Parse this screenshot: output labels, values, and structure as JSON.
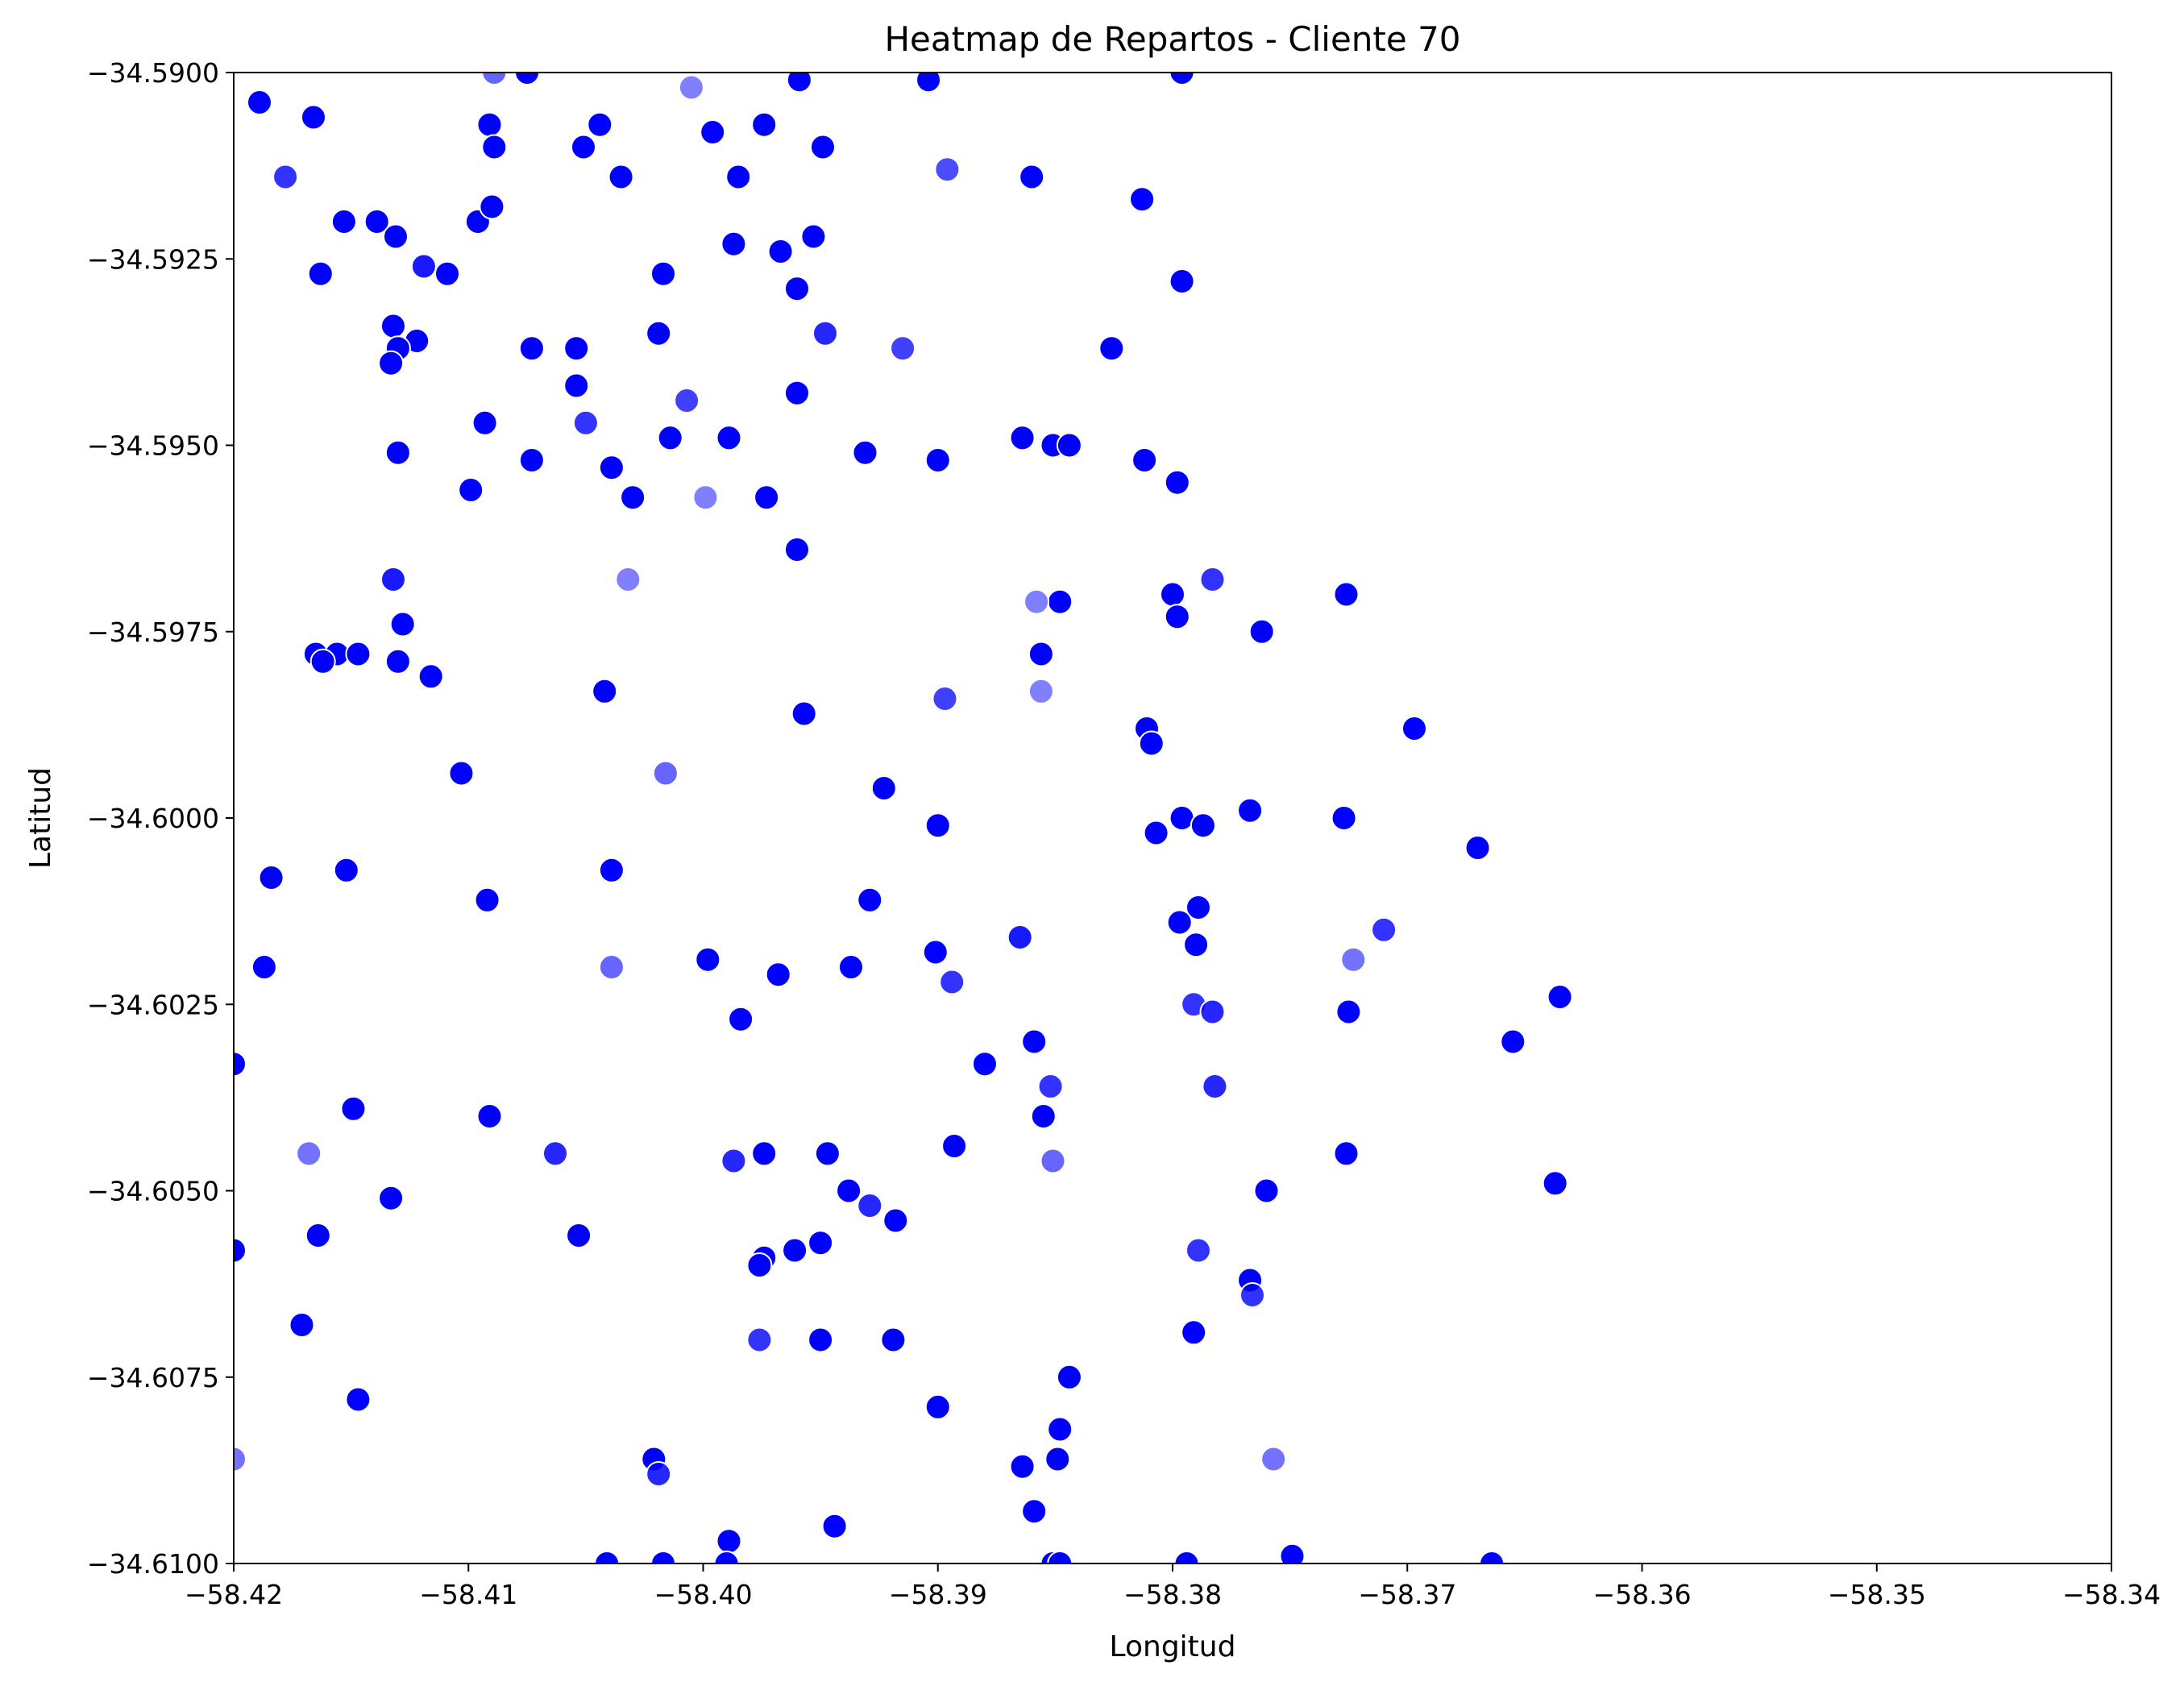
{
  "chart_data": {
    "type": "scatter",
    "title": "Heatmap de Repartos - Cliente 70",
    "xlabel": "Longitud",
    "ylabel": "Latitud",
    "xlim": [
      -58.42,
      -58.34
    ],
    "ylim": [
      -34.61,
      -34.59
    ],
    "x_ticks": [
      "−58.42",
      "−58.41",
      "−58.40",
      "−58.39",
      "−58.38",
      "−58.37",
      "−58.36",
      "−58.35",
      "−58.34"
    ],
    "x_tick_values": [
      -58.42,
      -58.41,
      -58.4,
      -58.39,
      -58.38,
      -58.37,
      -58.36,
      -58.35,
      -58.34
    ],
    "y_ticks": [
      "−34.5900",
      "−34.5925",
      "−34.5950",
      "−34.5975",
      "−34.6000",
      "−34.6025",
      "−34.6050",
      "−34.6075",
      "−34.6100"
    ],
    "y_tick_values": [
      -34.59,
      -34.5925,
      -34.595,
      -34.5975,
      -34.6,
      -34.6025,
      -34.605,
      -34.6075,
      -34.61
    ],
    "grid": false,
    "marker_color": "#0000ff",
    "marker_edge_color": "#ffffff",
    "points": [
      {
        "x": -58.4089,
        "y": -34.59,
        "a": 0.6
      },
      {
        "x": -58.4075,
        "y": -34.59,
        "a": 1
      },
      {
        "x": -58.4005,
        "y": -34.5902,
        "a": 0.5
      },
      {
        "x": -58.3959,
        "y": -34.5901,
        "a": 1
      },
      {
        "x": -58.3904,
        "y": -34.5901,
        "a": 1
      },
      {
        "x": -58.3796,
        "y": -34.59,
        "a": 1
      },
      {
        "x": -58.4189,
        "y": -34.5904,
        "a": 1
      },
      {
        "x": -58.4166,
        "y": -34.5906,
        "a": 1
      },
      {
        "x": -58.4091,
        "y": -34.5907,
        "a": 1
      },
      {
        "x": -58.4044,
        "y": -34.5907,
        "a": 1
      },
      {
        "x": -58.3996,
        "y": -34.5908,
        "a": 1
      },
      {
        "x": -58.3974,
        "y": -34.5907,
        "a": 1
      },
      {
        "x": -58.4089,
        "y": -34.591,
        "a": 1
      },
      {
        "x": -58.4051,
        "y": -34.591,
        "a": 1
      },
      {
        "x": -58.3949,
        "y": -34.591,
        "a": 1
      },
      {
        "x": -58.4178,
        "y": -34.5914,
        "a": 0.8
      },
      {
        "x": -58.4035,
        "y": -34.5914,
        "a": 1
      },
      {
        "x": -58.3985,
        "y": -34.5914,
        "a": 1
      },
      {
        "x": -58.3896,
        "y": -34.5913,
        "a": 0.7
      },
      {
        "x": -58.386,
        "y": -34.5914,
        "a": 1
      },
      {
        "x": -58.3813,
        "y": -34.5917,
        "a": 1
      },
      {
        "x": -58.4153,
        "y": -34.592,
        "a": 1
      },
      {
        "x": -58.4139,
        "y": -34.592,
        "a": 1
      },
      {
        "x": -58.4131,
        "y": -34.5922,
        "a": 1
      },
      {
        "x": -58.4096,
        "y": -34.592,
        "a": 1
      },
      {
        "x": -58.409,
        "y": -34.5918,
        "a": 1
      },
      {
        "x": -58.3987,
        "y": -34.5923,
        "a": 1
      },
      {
        "x": -58.3967,
        "y": -34.5924,
        "a": 1
      },
      {
        "x": -58.3953,
        "y": -34.5922,
        "a": 1
      },
      {
        "x": -58.4119,
        "y": -34.5926,
        "a": 0.9
      },
      {
        "x": -58.4163,
        "y": -34.5927,
        "a": 1
      },
      {
        "x": -58.4109,
        "y": -34.5927,
        "a": 1
      },
      {
        "x": -58.4017,
        "y": -34.5927,
        "a": 1
      },
      {
        "x": -58.396,
        "y": -34.5929,
        "a": 1
      },
      {
        "x": -58.3796,
        "y": -34.5928,
        "a": 1
      },
      {
        "x": -58.4132,
        "y": -34.5934,
        "a": 1
      },
      {
        "x": -58.4019,
        "y": -34.5935,
        "a": 1
      },
      {
        "x": -58.3948,
        "y": -34.5935,
        "a": 0.85
      },
      {
        "x": -58.4122,
        "y": -34.5936,
        "a": 1
      },
      {
        "x": -58.413,
        "y": -34.5937,
        "a": 1
      },
      {
        "x": -58.4073,
        "y": -34.5937,
        "a": 1
      },
      {
        "x": -58.4054,
        "y": -34.5937,
        "a": 1
      },
      {
        "x": -58.3915,
        "y": -34.5937,
        "a": 0.75
      },
      {
        "x": -58.3826,
        "y": -34.5937,
        "a": 1
      },
      {
        "x": -58.4133,
        "y": -34.5939,
        "a": 1
      },
      {
        "x": -58.4054,
        "y": -34.5942,
        "a": 1
      },
      {
        "x": -58.396,
        "y": -34.5943,
        "a": 1
      },
      {
        "x": -58.4007,
        "y": -34.5944,
        "a": 0.75
      },
      {
        "x": -58.4093,
        "y": -34.5947,
        "a": 1
      },
      {
        "x": -58.405,
        "y": -34.5947,
        "a": 0.8
      },
      {
        "x": -58.3989,
        "y": -34.5949,
        "a": 1
      },
      {
        "x": -58.4014,
        "y": -34.5949,
        "a": 1
      },
      {
        "x": -58.3931,
        "y": -34.5951,
        "a": 1
      },
      {
        "x": -58.3864,
        "y": -34.5949,
        "a": 1
      },
      {
        "x": -58.3851,
        "y": -34.595,
        "a": 1
      },
      {
        "x": -58.3844,
        "y": -34.595,
        "a": 1
      },
      {
        "x": -58.413,
        "y": -34.5951,
        "a": 1
      },
      {
        "x": -58.4073,
        "y": -34.5952,
        "a": 1
      },
      {
        "x": -58.4039,
        "y": -34.5953,
        "a": 1
      },
      {
        "x": -58.39,
        "y": -34.5952,
        "a": 1
      },
      {
        "x": -58.3812,
        "y": -34.5952,
        "a": 1
      },
      {
        "x": -58.3798,
        "y": -34.5955,
        "a": 1
      },
      {
        "x": -58.4099,
        "y": -34.5956,
        "a": 1
      },
      {
        "x": -58.403,
        "y": -34.5957,
        "a": 1
      },
      {
        "x": -58.3999,
        "y": -34.5957,
        "a": 0.5
      },
      {
        "x": -58.3973,
        "y": -34.5957,
        "a": 1
      },
      {
        "x": -58.396,
        "y": -34.5964,
        "a": 1
      },
      {
        "x": -58.4132,
        "y": -34.5968,
        "a": 0.9
      },
      {
        "x": -58.4032,
        "y": -34.5968,
        "a": 0.5
      },
      {
        "x": -58.3783,
        "y": -34.5968,
        "a": 0.8
      },
      {
        "x": -58.38,
        "y": -34.597,
        "a": 1
      },
      {
        "x": -58.3848,
        "y": -34.5971,
        "a": 1
      },
      {
        "x": -58.3858,
        "y": -34.5971,
        "a": 0.5
      },
      {
        "x": -58.3726,
        "y": -34.597,
        "a": 1
      },
      {
        "x": -58.3798,
        "y": -34.5973,
        "a": 1
      },
      {
        "x": -58.4128,
        "y": -34.5974,
        "a": 1
      },
      {
        "x": -58.3762,
        "y": -34.5975,
        "a": 1
      },
      {
        "x": -58.4165,
        "y": -34.5978,
        "a": 1
      },
      {
        "x": -58.4156,
        "y": -34.5978,
        "a": 1
      },
      {
        "x": -58.4147,
        "y": -34.5978,
        "a": 1
      },
      {
        "x": -58.4162,
        "y": -34.5979,
        "a": 1
      },
      {
        "x": -58.413,
        "y": -34.5979,
        "a": 1
      },
      {
        "x": -58.3856,
        "y": -34.5978,
        "a": 1
      },
      {
        "x": -58.4116,
        "y": -34.5981,
        "a": 1
      },
      {
        "x": -58.4042,
        "y": -34.5983,
        "a": 1
      },
      {
        "x": -58.3856,
        "y": -34.5983,
        "a": 0.5
      },
      {
        "x": -58.3897,
        "y": -34.5984,
        "a": 0.75
      },
      {
        "x": -58.3957,
        "y": -34.5986,
        "a": 1
      },
      {
        "x": -58.3697,
        "y": -34.5988,
        "a": 1
      },
      {
        "x": -58.3811,
        "y": -34.5988,
        "a": 1
      },
      {
        "x": -58.3809,
        "y": -34.599,
        "a": 1
      },
      {
        "x": -58.4103,
        "y": -34.5994,
        "a": 1
      },
      {
        "x": -58.4016,
        "y": -34.5994,
        "a": 0.6
      },
      {
        "x": -58.3923,
        "y": -34.5996,
        "a": 1
      },
      {
        "x": -58.3767,
        "y": -34.5999,
        "a": 1
      },
      {
        "x": -58.3796,
        "y": -34.6,
        "a": 1
      },
      {
        "x": -58.3787,
        "y": -34.6001,
        "a": 1
      },
      {
        "x": -58.39,
        "y": -34.6001,
        "a": 1
      },
      {
        "x": -58.3727,
        "y": -34.6,
        "a": 1
      },
      {
        "x": -58.3807,
        "y": -34.6002,
        "a": 1
      },
      {
        "x": -58.367,
        "y": -34.6004,
        "a": 1
      },
      {
        "x": -58.4184,
        "y": -34.6008,
        "a": 1
      },
      {
        "x": -58.4152,
        "y": -34.6007,
        "a": 1
      },
      {
        "x": -58.4039,
        "y": -34.6007,
        "a": 1
      },
      {
        "x": -58.4092,
        "y": -34.6011,
        "a": 1
      },
      {
        "x": -58.3929,
        "y": -34.6011,
        "a": 1
      },
      {
        "x": -58.3789,
        "y": -34.6012,
        "a": 1
      },
      {
        "x": -58.3797,
        "y": -34.6014,
        "a": 1
      },
      {
        "x": -58.371,
        "y": -34.6015,
        "a": 0.8
      },
      {
        "x": -58.3865,
        "y": -34.6016,
        "a": 0.9
      },
      {
        "x": -58.379,
        "y": -34.6017,
        "a": 1
      },
      {
        "x": -58.3901,
        "y": -34.6018,
        "a": 1
      },
      {
        "x": -58.3998,
        "y": -34.6019,
        "a": 1
      },
      {
        "x": -58.3937,
        "y": -34.602,
        "a": 1
      },
      {
        "x": -58.3723,
        "y": -34.6019,
        "a": 0.55
      },
      {
        "x": -58.4187,
        "y": -34.602,
        "a": 1
      },
      {
        "x": -58.4039,
        "y": -34.602,
        "a": 0.6
      },
      {
        "x": -58.3968,
        "y": -34.6021,
        "a": 1
      },
      {
        "x": -58.3894,
        "y": -34.6022,
        "a": 0.8
      },
      {
        "x": -58.3635,
        "y": -34.6024,
        "a": 1
      },
      {
        "x": -58.3791,
        "y": -34.6025,
        "a": 0.8
      },
      {
        "x": -58.3783,
        "y": -34.6026,
        "a": 0.85
      },
      {
        "x": -58.3725,
        "y": -34.6026,
        "a": 1
      },
      {
        "x": -58.3984,
        "y": -34.6027,
        "a": 1
      },
      {
        "x": -58.3859,
        "y": -34.603,
        "a": 1
      },
      {
        "x": -58.3655,
        "y": -34.603,
        "a": 1
      },
      {
        "x": -58.388,
        "y": -34.6033,
        "a": 1
      },
      {
        "x": -58.42,
        "y": -34.6033,
        "a": 1
      },
      {
        "x": -58.3852,
        "y": -34.6036,
        "a": 0.8
      },
      {
        "x": -58.3782,
        "y": -34.6036,
        "a": 0.85
      },
      {
        "x": -58.4149,
        "y": -34.6039,
        "a": 1
      },
      {
        "x": -58.4091,
        "y": -34.604,
        "a": 1
      },
      {
        "x": -58.3855,
        "y": -34.604,
        "a": 1
      },
      {
        "x": -58.3893,
        "y": -34.6044,
        "a": 1
      },
      {
        "x": -58.4168,
        "y": -34.6045,
        "a": 0.55
      },
      {
        "x": -58.4063,
        "y": -34.6045,
        "a": 0.85
      },
      {
        "x": -58.3974,
        "y": -34.6045,
        "a": 1
      },
      {
        "x": -58.3947,
        "y": -34.6045,
        "a": 1
      },
      {
        "x": -58.3851,
        "y": -34.6046,
        "a": 0.6
      },
      {
        "x": -58.3726,
        "y": -34.6045,
        "a": 1
      },
      {
        "x": -58.3987,
        "y": -34.6046,
        "a": 0.85
      },
      {
        "x": -58.3637,
        "y": -34.6049,
        "a": 1
      },
      {
        "x": -58.376,
        "y": -34.605,
        "a": 1
      },
      {
        "x": -58.3938,
        "y": -34.605,
        "a": 1
      },
      {
        "x": -58.4133,
        "y": -34.6051,
        "a": 1
      },
      {
        "x": -58.3929,
        "y": -34.6052,
        "a": 0.85
      },
      {
        "x": -58.3918,
        "y": -34.6054,
        "a": 1
      },
      {
        "x": -58.4164,
        "y": -34.6056,
        "a": 1
      },
      {
        "x": -58.4053,
        "y": -34.6056,
        "a": 1
      },
      {
        "x": -58.395,
        "y": -34.6057,
        "a": 1
      },
      {
        "x": -58.42,
        "y": -34.6058,
        "a": 1
      },
      {
        "x": -58.3974,
        "y": -34.6059,
        "a": 1
      },
      {
        "x": -58.3961,
        "y": -34.6058,
        "a": 1
      },
      {
        "x": -58.3976,
        "y": -34.606,
        "a": 1
      },
      {
        "x": -58.3789,
        "y": -34.6058,
        "a": 0.8
      },
      {
        "x": -58.3767,
        "y": -34.6062,
        "a": 1
      },
      {
        "x": -58.3766,
        "y": -34.6064,
        "a": 0.8
      },
      {
        "x": -58.4171,
        "y": -34.6068,
        "a": 1
      },
      {
        "x": -58.3976,
        "y": -34.607,
        "a": 0.8
      },
      {
        "x": -58.395,
        "y": -34.607,
        "a": 1
      },
      {
        "x": -58.3919,
        "y": -34.607,
        "a": 1
      },
      {
        "x": -58.3791,
        "y": -34.6069,
        "a": 1
      },
      {
        "x": -58.3844,
        "y": -34.6075,
        "a": 1
      },
      {
        "x": -58.4147,
        "y": -34.6078,
        "a": 1
      },
      {
        "x": -58.39,
        "y": -34.6079,
        "a": 1
      },
      {
        "x": -58.3848,
        "y": -34.6082,
        "a": 1
      },
      {
        "x": -58.42,
        "y": -34.6086,
        "a": 0.55
      },
      {
        "x": -58.4021,
        "y": -34.6086,
        "a": 1
      },
      {
        "x": -58.4019,
        "y": -34.6088,
        "a": 0.85
      },
      {
        "x": -58.3864,
        "y": -34.6087,
        "a": 1
      },
      {
        "x": -58.3849,
        "y": -34.6086,
        "a": 1
      },
      {
        "x": -58.3757,
        "y": -34.6086,
        "a": 0.55
      },
      {
        "x": -58.3859,
        "y": -34.6093,
        "a": 1
      },
      {
        "x": -58.3944,
        "y": -34.6095,
        "a": 1
      },
      {
        "x": -58.3989,
        "y": -34.6097,
        "a": 1
      },
      {
        "x": -58.4041,
        "y": -34.61,
        "a": 1
      },
      {
        "x": -58.4017,
        "y": -34.61,
        "a": 1
      },
      {
        "x": -58.399,
        "y": -34.61,
        "a": 1
      },
      {
        "x": -58.3851,
        "y": -34.61,
        "a": 1
      },
      {
        "x": -58.3848,
        "y": -34.61,
        "a": 1
      },
      {
        "x": -58.3794,
        "y": -34.61,
        "a": 1
      },
      {
        "x": -58.3749,
        "y": -34.6099,
        "a": 1
      },
      {
        "x": -58.3664,
        "y": -34.61,
        "a": 1
      }
    ]
  }
}
